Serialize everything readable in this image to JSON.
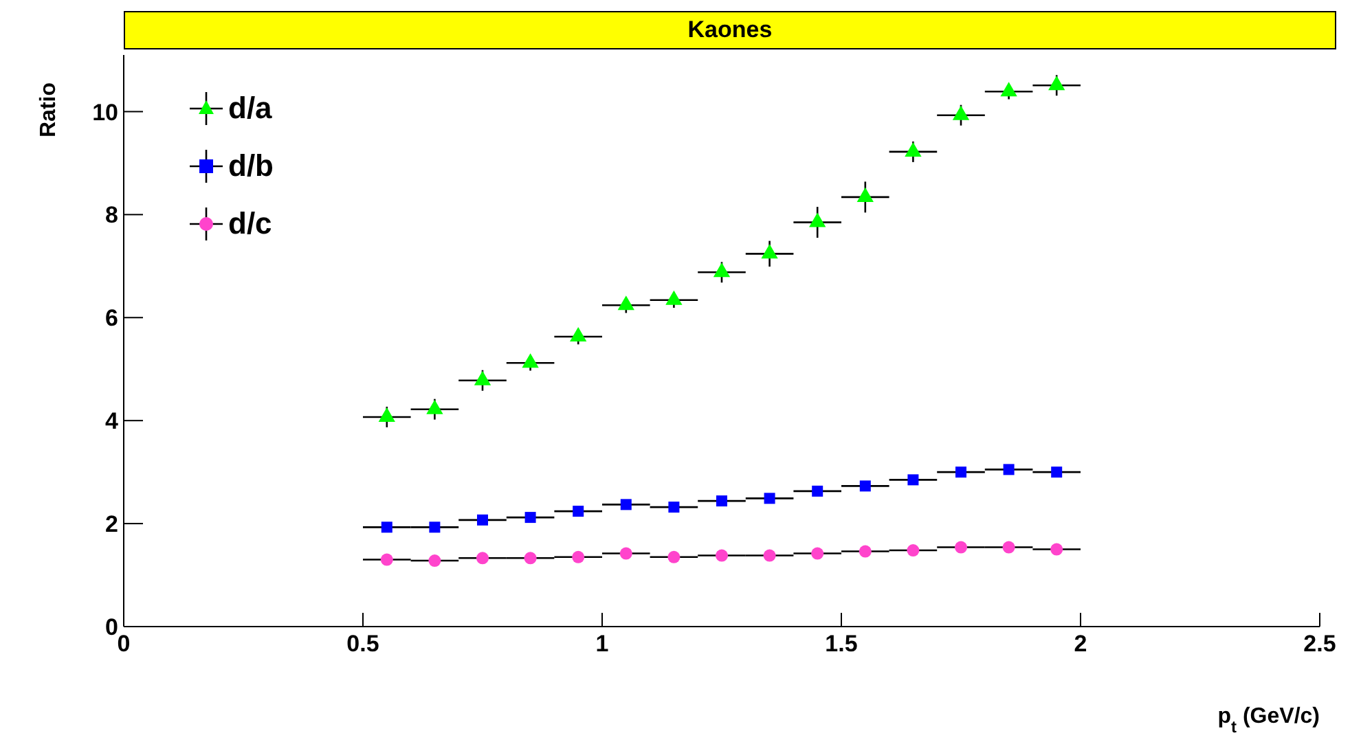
{
  "chart_data": {
    "type": "scatter",
    "title": "Kaones",
    "xlabel": "p$_{t}$ (GeV/c)",
    "ylabel": "Ratio",
    "x": [
      0.55,
      0.65,
      0.75,
      0.85,
      0.95,
      1.05,
      1.15,
      1.25,
      1.35,
      1.45,
      1.55,
      1.65,
      1.75,
      1.85,
      1.95
    ],
    "series": [
      {
        "name": "d/a",
        "color": "#00ff00",
        "marker": "triangle",
        "values": [
          4.07,
          4.22,
          4.78,
          5.12,
          5.63,
          6.24,
          6.34,
          6.88,
          7.24,
          7.85,
          8.34,
          9.22,
          9.93,
          10.39,
          10.51
        ],
        "errors": [
          0.2,
          0.2,
          0.2,
          0.15,
          0.15,
          0.15,
          0.15,
          0.2,
          0.25,
          0.3,
          0.3,
          0.2,
          0.2,
          0.15,
          0.2
        ],
        "xerrors": [
          0.05,
          0.05,
          0.05,
          0.05,
          0.05,
          0.05,
          0.05,
          0.05,
          0.05,
          0.05,
          0.05,
          0.05,
          0.05,
          0.05,
          0.05
        ]
      },
      {
        "name": "d/b",
        "color": "#0000ff",
        "marker": "square",
        "values": [
          1.93,
          1.93,
          2.07,
          2.12,
          2.24,
          2.37,
          2.32,
          2.44,
          2.49,
          2.63,
          2.73,
          2.85,
          3.0,
          3.05,
          3.0
        ],
        "xerrors": [
          0.05,
          0.05,
          0.05,
          0.05,
          0.05,
          0.05,
          0.05,
          0.05,
          0.05,
          0.05,
          0.05,
          0.05,
          0.05,
          0.05,
          0.05
        ]
      },
      {
        "name": "d/c",
        "color": "#ff44cc",
        "marker": "circle",
        "values": [
          1.3,
          1.28,
          1.33,
          1.33,
          1.35,
          1.42,
          1.35,
          1.38,
          1.38,
          1.42,
          1.46,
          1.48,
          1.54,
          1.54,
          1.5
        ],
        "xerrors": [
          0.05,
          0.05,
          0.05,
          0.05,
          0.05,
          0.05,
          0.05,
          0.05,
          0.05,
          0.05,
          0.05,
          0.05,
          0.05,
          0.05,
          0.05
        ]
      }
    ],
    "xlim": [
      0,
      2.5
    ],
    "xticks": [
      0,
      0.5,
      1,
      1.5,
      2,
      2.5
    ],
    "ylim": [
      0,
      11.1
    ],
    "yticks": [
      0,
      2,
      4,
      6,
      8,
      10
    ],
    "grid": false,
    "legend": "top left"
  }
}
